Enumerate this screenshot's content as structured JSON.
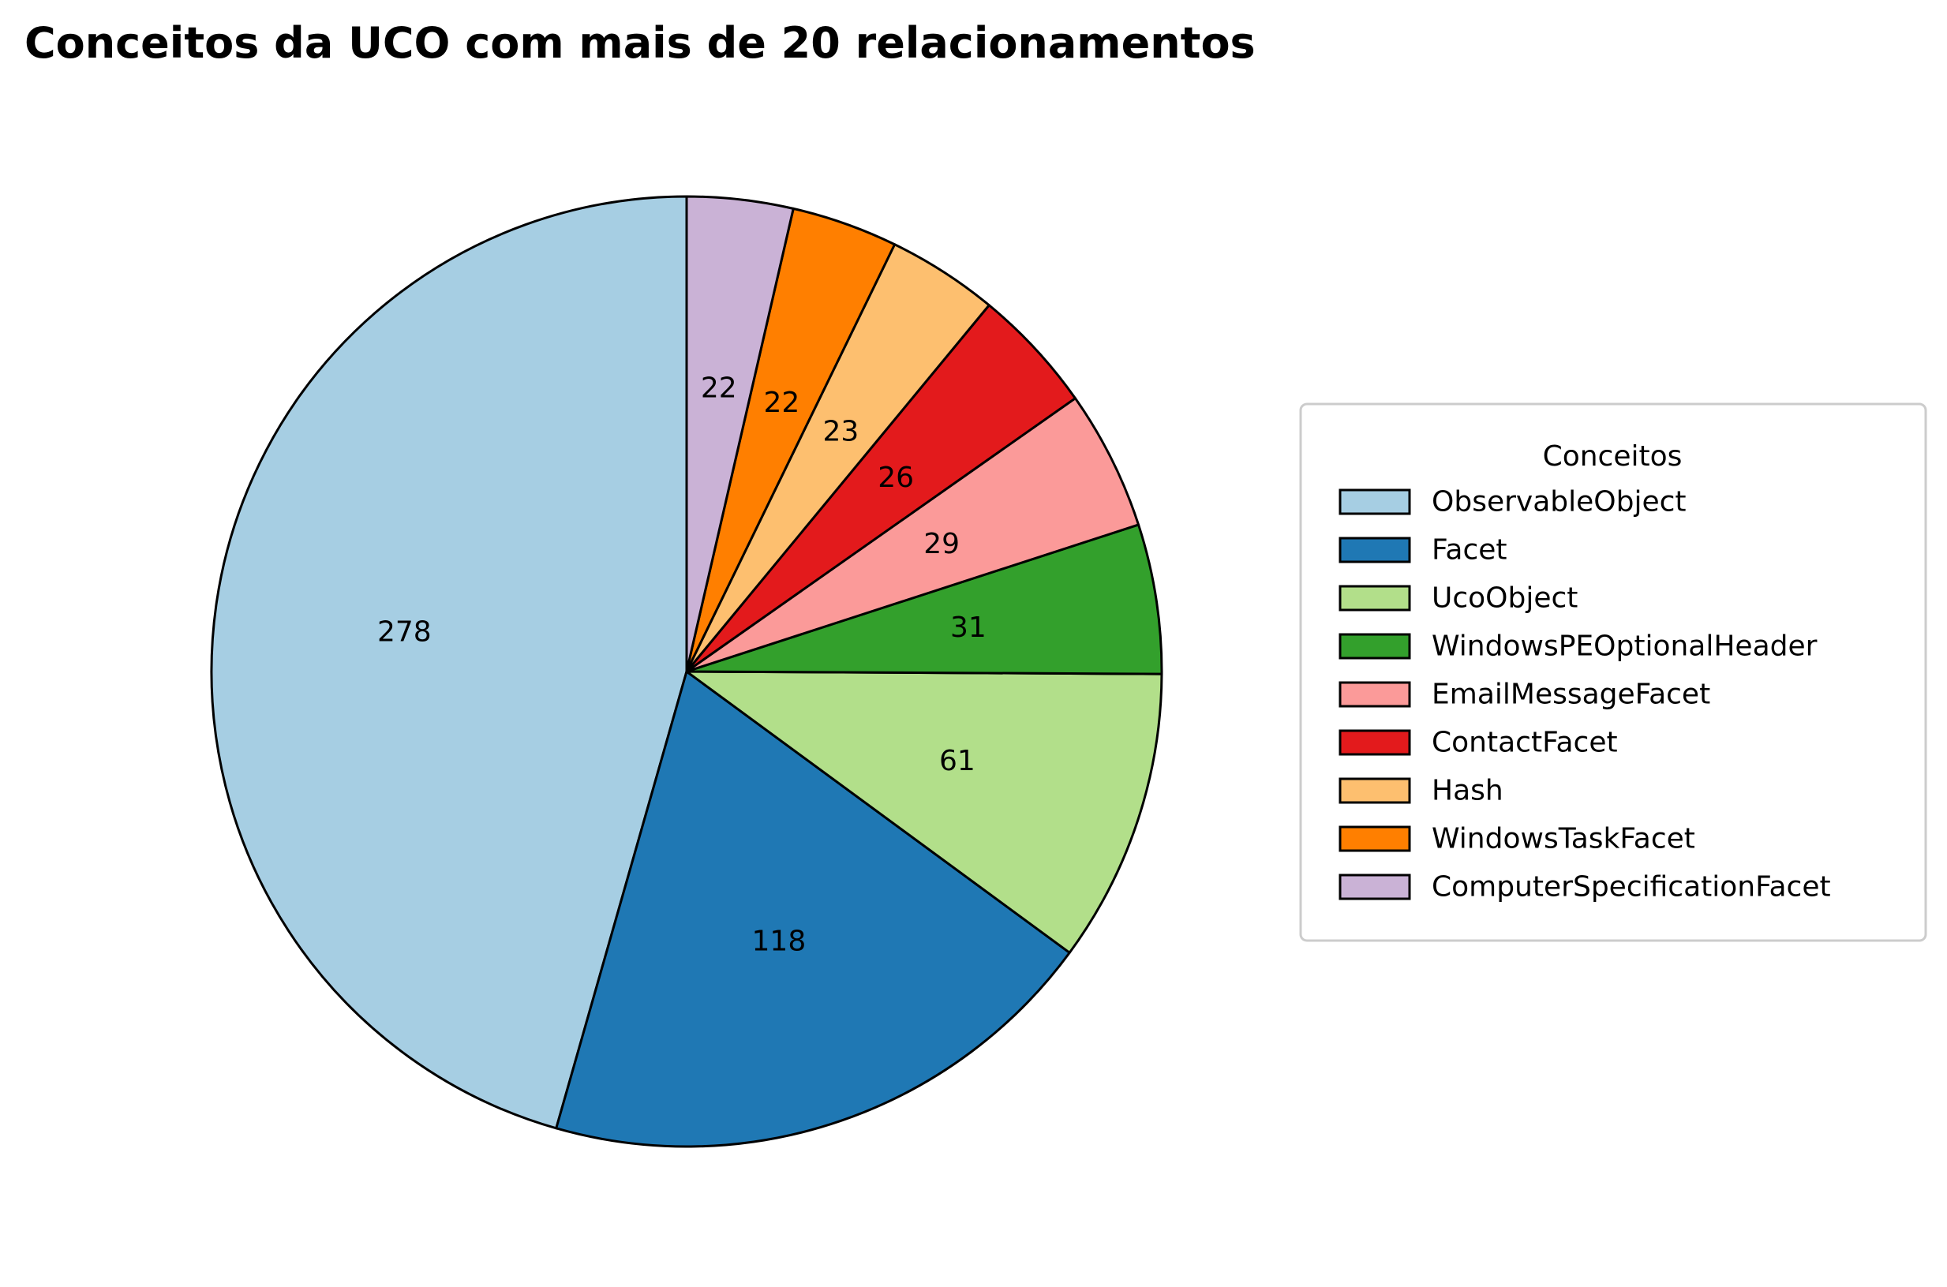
{
  "chart_data": {
    "type": "pie",
    "title": "Conceitos da UCO com mais de 20 relacionamentos",
    "categories": [
      "ObservableObject",
      "Facet",
      "UcoObject",
      "WindowsPEOptionalHeader",
      "EmailMessageFacet",
      "ContactFacet",
      "Hash",
      "WindowsTaskFacet",
      "ComputerSpecificationFacet"
    ],
    "values": [
      278,
      118,
      61,
      31,
      29,
      26,
      23,
      22,
      22
    ],
    "colors": [
      "#a6cee3",
      "#1f78b4",
      "#b2df8a",
      "#33a02c",
      "#fb9a99",
      "#e31a1c",
      "#fdbf6f",
      "#ff7f00",
      "#cab2d6"
    ],
    "start_direction": "top",
    "direction": "counterclockwise",
    "legend": {
      "title": "Conceitos",
      "placement": "right"
    }
  }
}
